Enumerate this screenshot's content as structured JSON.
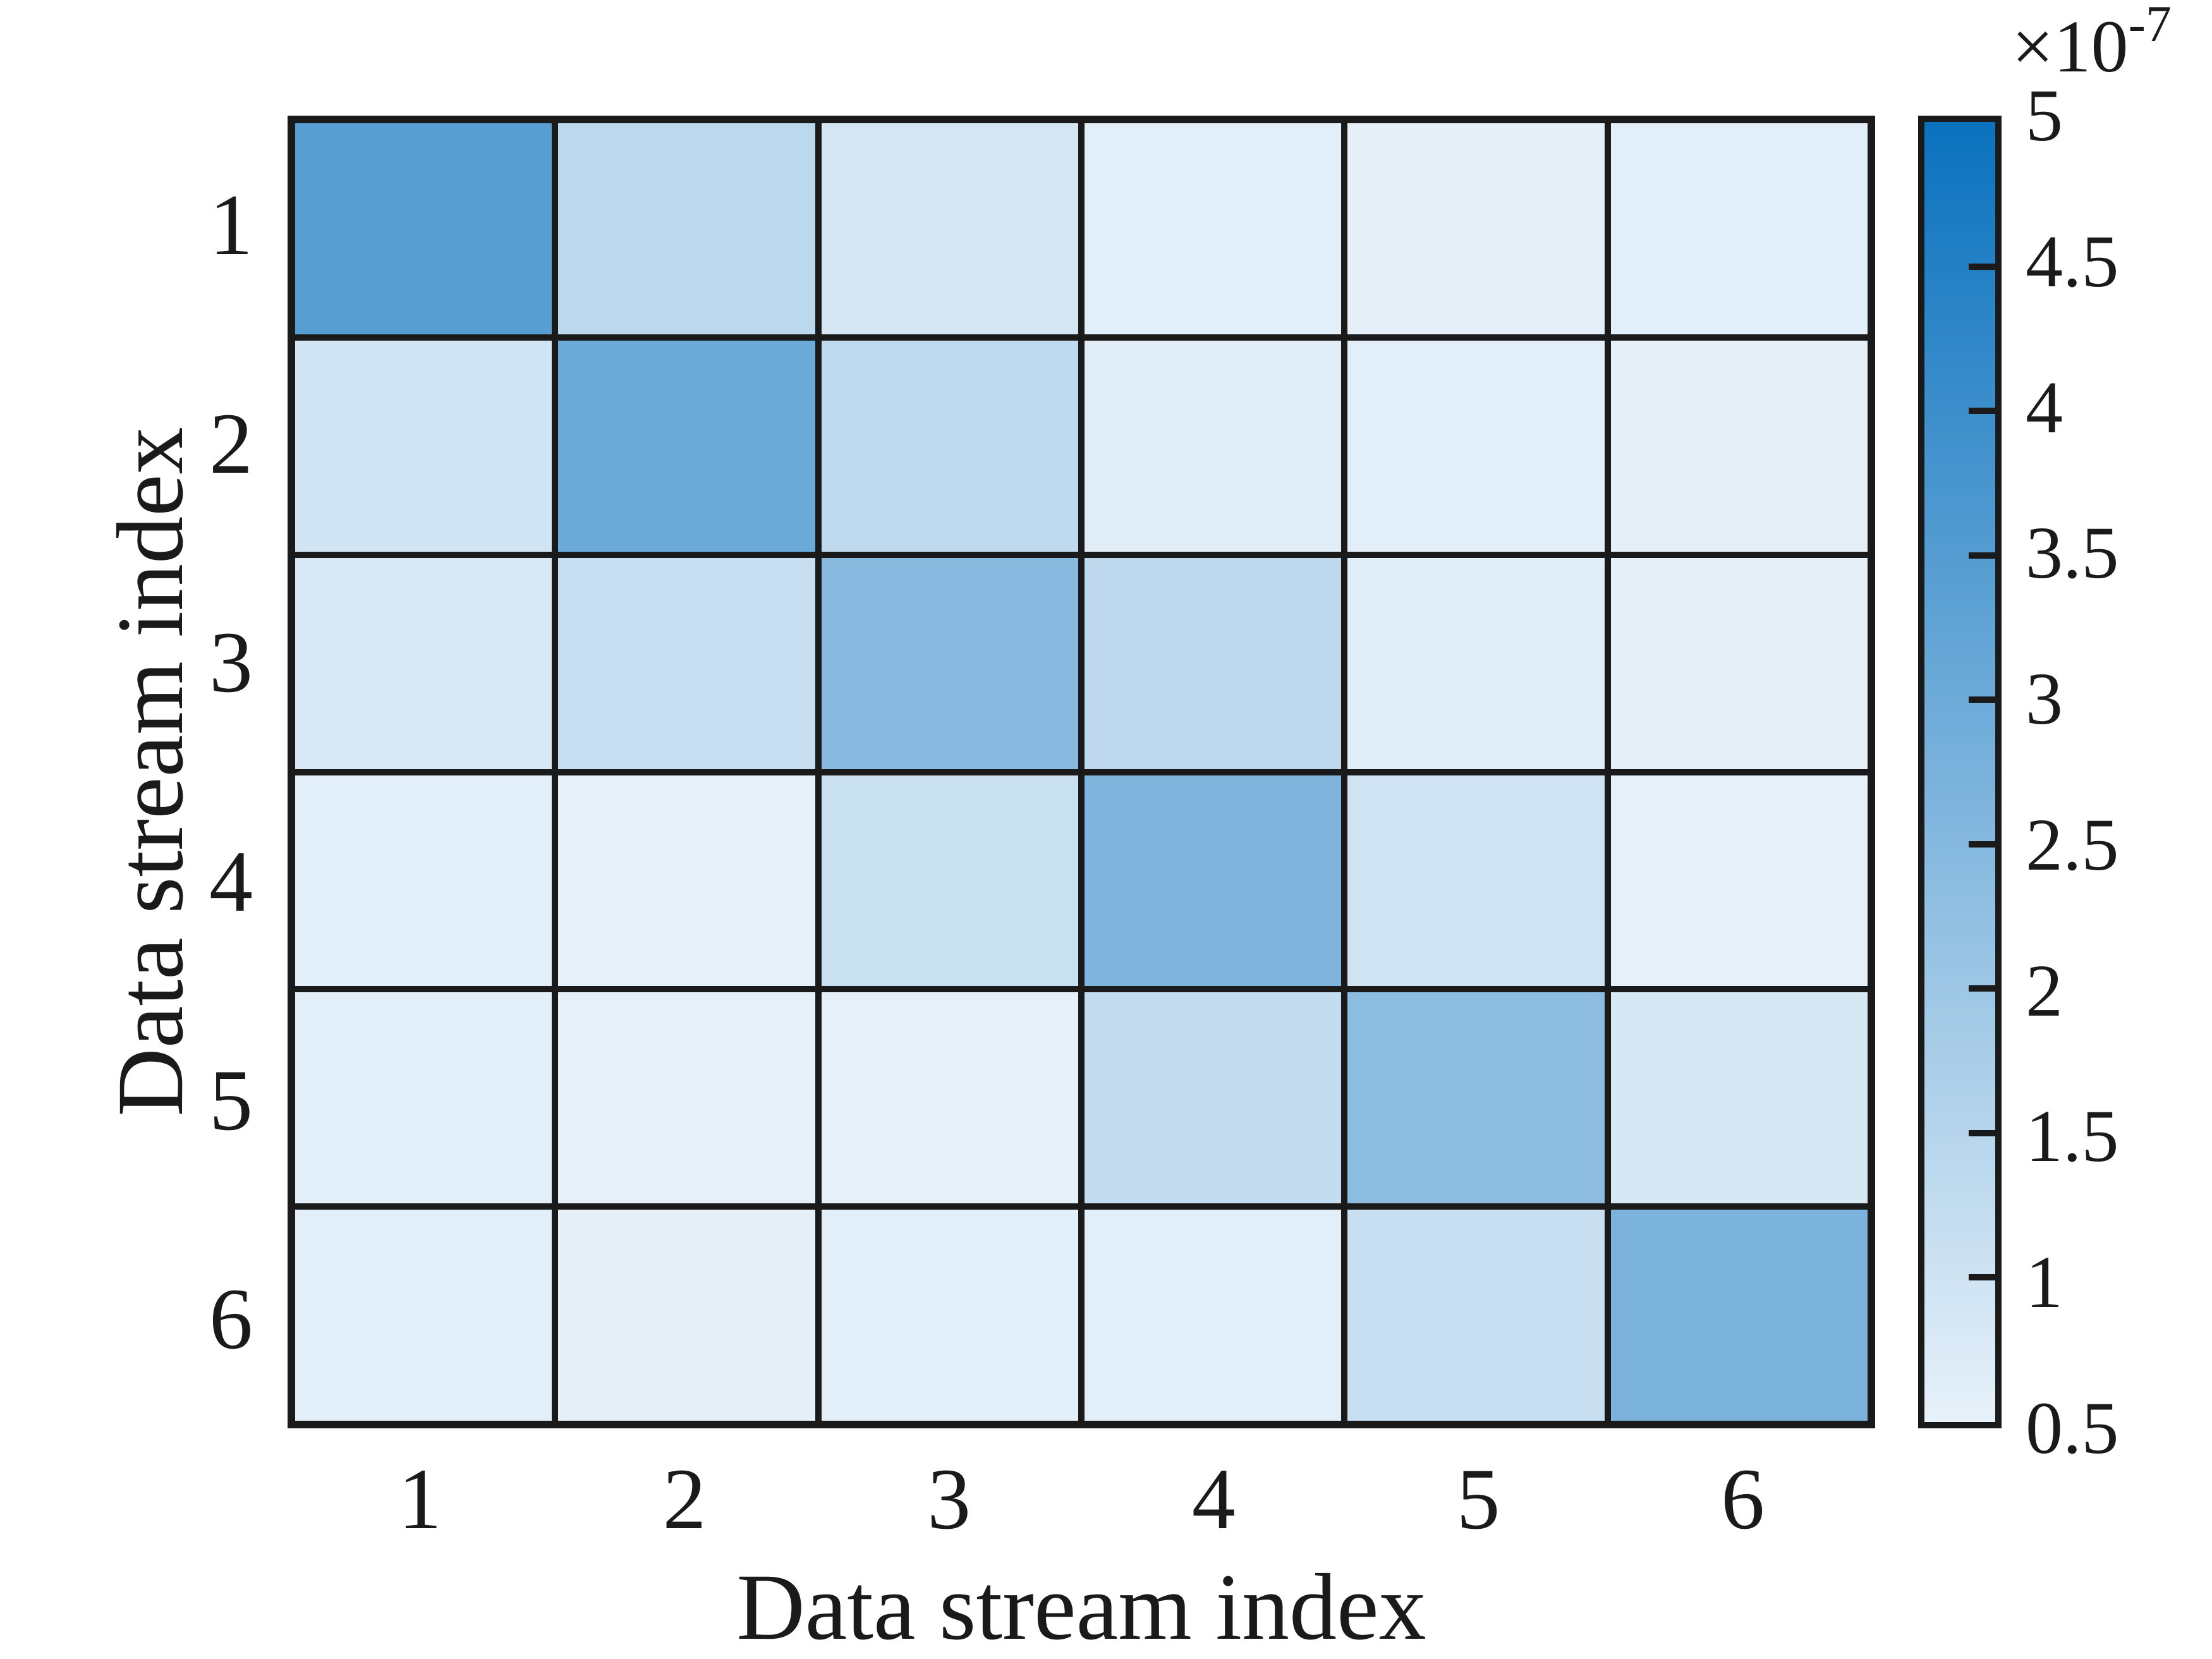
{
  "figure": {
    "background_color": "#ffffff",
    "text_color": "#1a1a1a",
    "grid_line_color": "#1a1a1a"
  },
  "chart_data": {
    "type": "heatmap",
    "title": "",
    "xlabel": "Data stream index",
    "ylabel": "Data stream index",
    "x_categories": [
      "1",
      "2",
      "3",
      "4",
      "5",
      "6"
    ],
    "y_categories": [
      "1",
      "2",
      "3",
      "4",
      "5",
      "6"
    ],
    "value_multiplier_base": "×10",
    "value_multiplier_exponent": "-7",
    "values_x1e7": [
      [
        3.45,
        1.38,
        0.85,
        0.58,
        0.56,
        0.58
      ],
      [
        0.97,
        3.04,
        1.32,
        0.64,
        0.58,
        0.56
      ],
      [
        0.81,
        1.15,
        2.44,
        1.34,
        0.62,
        0.56
      ],
      [
        0.6,
        0.52,
        1.11,
        2.63,
        0.99,
        0.54
      ],
      [
        0.6,
        0.52,
        0.54,
        1.24,
        2.36,
        0.83
      ],
      [
        0.6,
        0.56,
        0.58,
        0.6,
        1.13,
        2.69
      ]
    ],
    "colorbar": {
      "min": 0.5,
      "max": 5,
      "tick_values": [
        0.5,
        1,
        1.5,
        2,
        2.5,
        3,
        3.5,
        4,
        4.5,
        5
      ],
      "tick_labels": [
        "0.5",
        "1",
        "1.5",
        "2",
        "2.5",
        "3",
        "3.5",
        "4",
        "4.5",
        "5"
      ],
      "low_color": "#E7F1F9",
      "high_color": "#0B72BE",
      "orientation": "vertical",
      "position": "right"
    },
    "grid": "on",
    "legend_position": "none"
  }
}
